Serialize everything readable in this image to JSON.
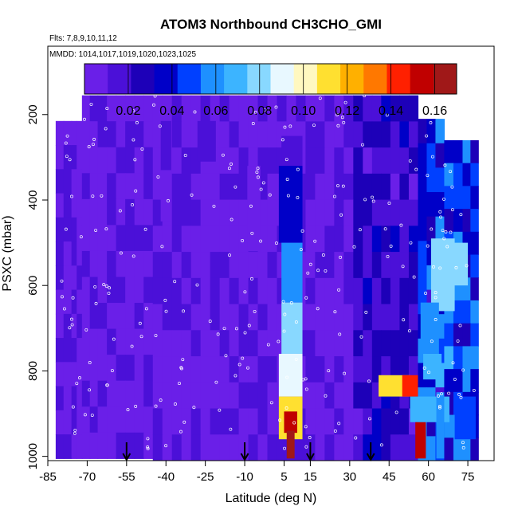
{
  "chart_data": {
    "type": "heatmap",
    "title": "ATOM3 Northbound CH3CHO_GMI",
    "notes": {
      "flights": "Flts: 7,8,9,10,11,12",
      "dates": "MMDD: 1014,1017,1019,1020,1023,1025"
    },
    "xlabel": "Latitude (deg N)",
    "ylabel": "PSXC (mbar)",
    "xlim": [
      -85,
      85
    ],
    "ylim": [
      1010,
      40
    ],
    "y_reversed": true,
    "x_ticks": [
      -85,
      -70,
      -55,
      -40,
      -25,
      -10,
      5,
      15,
      30,
      45,
      60,
      75
    ],
    "y_ticks": [
      200,
      400,
      600,
      800,
      1000
    ],
    "colorbar": {
      "min": 0.0,
      "max": 0.17,
      "ticks": [
        0.02,
        0.04,
        0.06,
        0.08,
        0.1,
        0.12,
        0.14,
        0.16
      ],
      "tick_labels": [
        "0.02",
        "0.04",
        "0.06",
        "0.08",
        "0.10",
        "0.12",
        "0.14",
        "0.16"
      ],
      "colors": [
        "#6a1fe8",
        "#4b10d8",
        "#1d00b8",
        "#0000c8",
        "#0040ff",
        "#1e90ff",
        "#3cb4ff",
        "#88d8ff",
        "#e8f8ff",
        "#fff8c0",
        "#ffe030",
        "#ffb000",
        "#ff7800",
        "#ff2000",
        "#c00000",
        "#a01818"
      ]
    },
    "arrows_lat": [
      -55,
      -10,
      15,
      38
    ],
    "columns": [
      {
        "lat0": -82,
        "lat1": -76,
        "ptop": 215,
        "pbot": 1005
      },
      {
        "lat0": -76,
        "lat1": -72,
        "ptop": 215,
        "pbot": 1005
      },
      {
        "lat0": -72,
        "lat1": -66,
        "ptop": 155,
        "pbot": 1005
      },
      {
        "lat0": -66,
        "lat1": -45,
        "ptop": 155,
        "pbot": 1005
      },
      {
        "lat0": -45,
        "lat1": 35,
        "ptop": 155,
        "pbot": 1010
      },
      {
        "lat0": 35,
        "lat1": 56,
        "ptop": 155,
        "pbot": 1010
      },
      {
        "lat0": 56,
        "lat1": 66,
        "ptop": 210,
        "pbot": 1010
      },
      {
        "lat0": 66,
        "lat1": 73,
        "ptop": 260,
        "pbot": 1010
      },
      {
        "lat0": 73,
        "lat1": 79,
        "ptop": 260,
        "pbot": 1010
      }
    ],
    "features": [
      {
        "lat0": -42,
        "lat1": -38,
        "p0": 215,
        "p1": 330,
        "value": 0.015
      },
      {
        "lat0": -42,
        "lat1": -38,
        "p0": 330,
        "p1": 450,
        "value": 0.01
      },
      {
        "lat0": -28,
        "lat1": -21,
        "p0": 215,
        "p1": 310,
        "value": 0.012
      },
      {
        "lat0": -9,
        "lat1": -4,
        "p0": 320,
        "p1": 520,
        "value": 0.01
      },
      {
        "lat0": 4,
        "lat1": 12,
        "p0": 250,
        "p1": 320,
        "value": 0.02
      },
      {
        "lat0": 3,
        "lat1": 12,
        "p0": 320,
        "p1": 500,
        "value": 0.04
      },
      {
        "lat0": 4,
        "lat1": 12,
        "p0": 500,
        "p1": 640,
        "value": 0.06
      },
      {
        "lat0": 4,
        "lat1": 12,
        "p0": 640,
        "p1": 760,
        "value": 0.075
      },
      {
        "lat0": 3,
        "lat1": 12,
        "p0": 760,
        "p1": 860,
        "value": 0.085
      },
      {
        "lat0": 3,
        "lat1": 12,
        "p0": 860,
        "p1": 960,
        "value": 0.11
      },
      {
        "lat0": 5,
        "lat1": 10,
        "p0": 895,
        "p1": 945,
        "value": 0.15
      },
      {
        "lat0": 6,
        "lat1": 9,
        "p0": 940,
        "p1": 1005,
        "value": 0.16
      },
      {
        "lat0": 41,
        "lat1": 53,
        "p0": 810,
        "p1": 860,
        "value": 0.11
      },
      {
        "lat0": 50,
        "lat1": 56,
        "p0": 810,
        "p1": 860,
        "value": 0.14
      },
      {
        "lat0": 53,
        "lat1": 68,
        "p0": 860,
        "p1": 920,
        "value": 0.07
      },
      {
        "lat0": 55,
        "lat1": 59,
        "p0": 920,
        "p1": 1005,
        "value": 0.15
      },
      {
        "lat0": 61,
        "lat1": 70,
        "p0": 490,
        "p1": 660,
        "value": 0.08
      },
      {
        "lat0": 57,
        "lat1": 64,
        "p0": 640,
        "p1": 760,
        "value": 0.06
      },
      {
        "lat0": 58,
        "lat1": 65,
        "p0": 760,
        "p1": 820,
        "value": 0.07
      },
      {
        "lat0": 67,
        "lat1": 75,
        "p0": 500,
        "p1": 600,
        "value": 0.075
      },
      {
        "lat0": 70,
        "lat1": 78,
        "p0": 860,
        "p1": 960,
        "value": 0.05
      },
      {
        "lat0": 63,
        "lat1": 66,
        "p0": 850,
        "p1": 1005,
        "value": 0.06
      }
    ]
  }
}
